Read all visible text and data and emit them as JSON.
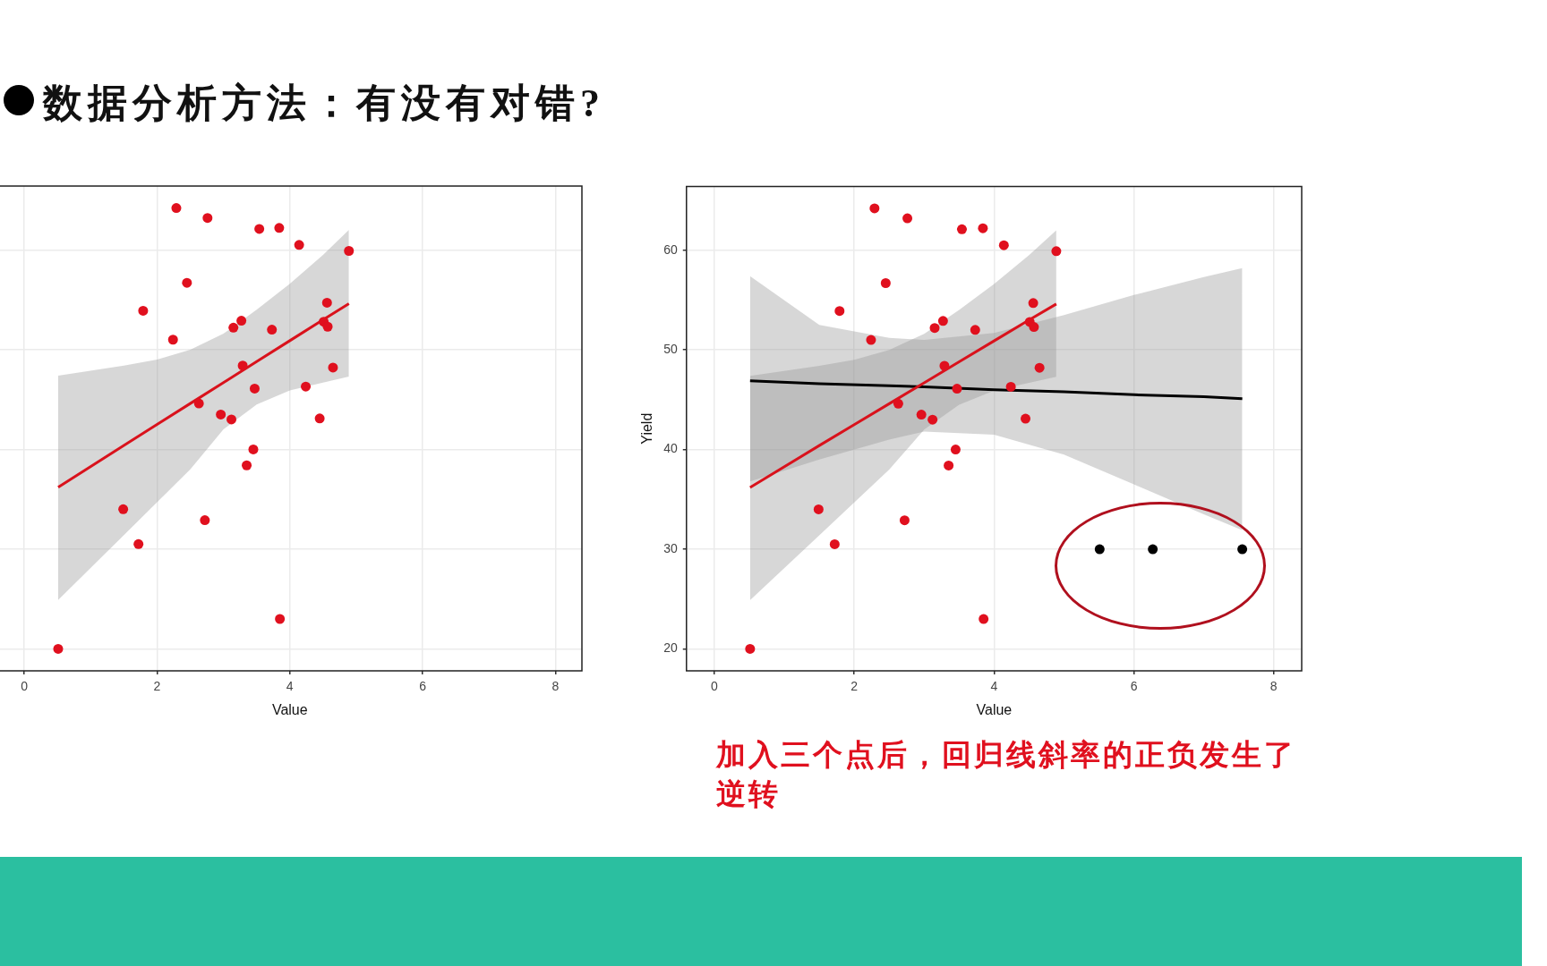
{
  "chart_data": [
    {
      "type": "scatter",
      "title": "数据分析方法：有没有对错?",
      "xlabel": "Value",
      "xlim": [
        -0.4,
        8.4
      ],
      "xticks": [
        0,
        2,
        4,
        6,
        8
      ],
      "ylim": [
        17.8,
        66.4
      ],
      "yticks": [
        20,
        30,
        40,
        50,
        60
      ],
      "tick_labels": "x",
      "grid": true,
      "legend": false,
      "marker": "circle",
      "x": [
        0.51,
        1.49,
        1.72,
        1.79,
        2.24,
        2.29,
        2.45,
        2.63,
        2.72,
        2.76,
        2.96,
        3.12,
        3.15,
        3.27,
        3.29,
        3.35,
        3.45,
        3.47,
        3.54,
        3.73,
        3.84,
        3.85,
        4.14,
        4.24,
        4.45,
        4.51,
        4.56,
        4.57,
        4.65,
        4.89
      ],
      "series": [
        {
          "color": "#e0101e",
          "values": [
            20.0,
            34.0,
            30.5,
            53.9,
            51.0,
            64.2,
            56.7,
            44.6,
            32.9,
            63.2,
            43.5,
            43.0,
            52.2,
            52.9,
            48.4,
            38.4,
            40.0,
            46.1,
            62.1,
            52.0,
            62.2,
            23.0,
            60.5,
            46.3,
            43.1,
            52.8,
            54.7,
            52.3,
            48.2,
            59.9
          ]
        },
        {
          "type": "line",
          "marker": "none",
          "line_style": "solid",
          "color": "#d9121c",
          "x": [
            0.51,
            1.5,
            2.0,
            2.5,
            3.0,
            3.5,
            4.0,
            4.5,
            4.89
          ],
          "values": [
            36.2,
            40.4,
            42.5,
            44.6,
            46.7,
            48.8,
            50.9,
            53.0,
            54.6
          ],
          "lower": [
            24.9,
            31.4,
            34.7,
            38.0,
            42.0,
            44.5,
            45.9,
            46.7,
            47.3
          ],
          "upper": [
            47.4,
            48.4,
            49.0,
            50.0,
            51.6,
            54.0,
            56.6,
            59.5,
            62.0
          ]
        }
      ]
    },
    {
      "type": "scatter",
      "xlabel": "Value",
      "ylabel": "Yield",
      "xlim": [
        -0.4,
        8.4
      ],
      "xticks": [
        0,
        2,
        4,
        6,
        8
      ],
      "ylim": [
        17.8,
        66.4
      ],
      "yticks": [
        20,
        30,
        40,
        50,
        60
      ],
      "grid": true,
      "legend": false,
      "marker": "circle",
      "annotations": [
        "加入三个点后，回归线斜率的正负发生了逆转"
      ],
      "x": [
        0.51,
        1.49,
        1.72,
        1.79,
        2.24,
        2.29,
        2.45,
        2.63,
        2.72,
        2.76,
        2.96,
        3.12,
        3.15,
        3.27,
        3.29,
        3.35,
        3.45,
        3.47,
        3.54,
        3.73,
        3.84,
        3.85,
        4.14,
        4.24,
        4.45,
        4.51,
        4.56,
        4.57,
        4.65,
        4.89
      ],
      "series": [
        {
          "color": "#e0101e",
          "values": [
            20.0,
            34.0,
            30.5,
            53.9,
            51.0,
            64.2,
            56.7,
            44.6,
            32.9,
            63.2,
            43.5,
            43.0,
            52.2,
            52.9,
            48.4,
            38.4,
            40.0,
            46.1,
            62.1,
            52.0,
            62.2,
            23.0,
            60.5,
            46.3,
            43.1,
            52.8,
            54.7,
            52.3,
            48.2,
            59.9
          ]
        },
        {
          "color": "#000000",
          "x": [
            5.51,
            6.27,
            7.55
          ],
          "values": [
            30,
            30,
            30
          ]
        },
        {
          "type": "line",
          "marker": "none",
          "line_style": "solid",
          "color": "#d9121c",
          "x": [
            0.51,
            1.5,
            2.0,
            2.5,
            3.0,
            3.5,
            4.0,
            4.5,
            4.89
          ],
          "values": [
            36.2,
            40.4,
            42.5,
            44.6,
            46.7,
            48.8,
            50.9,
            53.0,
            54.6
          ],
          "lower": [
            24.9,
            31.4,
            34.7,
            38.0,
            42.0,
            44.5,
            45.9,
            46.7,
            47.3
          ],
          "upper": [
            47.4,
            48.4,
            49.0,
            50.0,
            51.6,
            54.0,
            56.6,
            59.5,
            62.0
          ]
        },
        {
          "type": "line",
          "marker": "none",
          "line_style": "solid",
          "color": "#000000",
          "x": [
            0.51,
            1.5,
            2.5,
            3.0,
            4.0,
            5.0,
            6.0,
            7.0,
            7.55
          ],
          "values": [
            46.9,
            46.6,
            46.4,
            46.3,
            46.0,
            45.8,
            45.5,
            45.3,
            45.1
          ],
          "lower": [
            36.8,
            39.0,
            41.0,
            41.8,
            41.5,
            39.5,
            36.5,
            33.5,
            31.9
          ],
          "upper": [
            57.4,
            52.5,
            51.2,
            51.0,
            51.7,
            53.5,
            55.5,
            57.3,
            58.2
          ]
        }
      ]
    }
  ]
}
